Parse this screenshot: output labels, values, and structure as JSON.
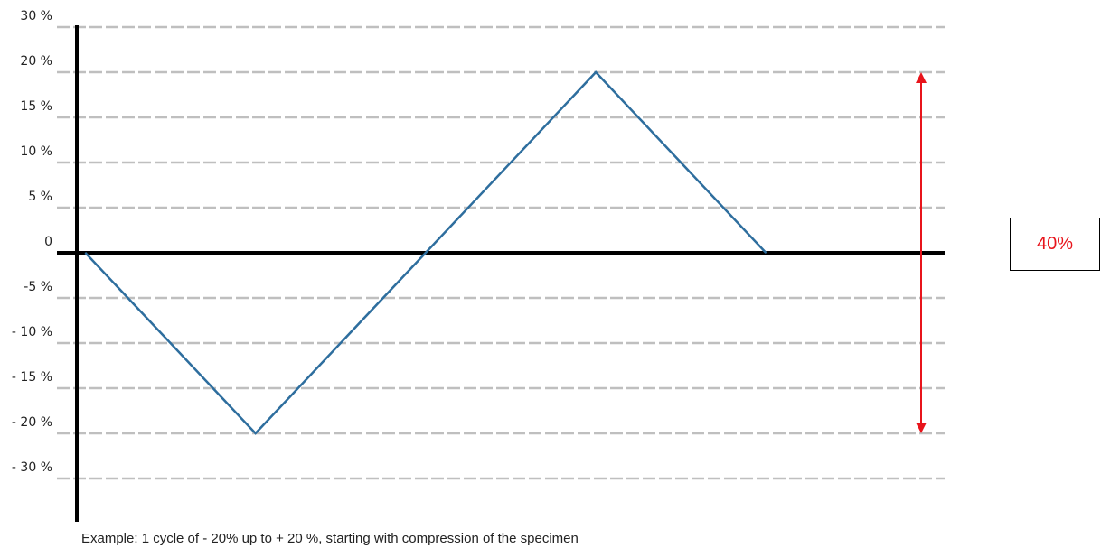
{
  "chart_data": {
    "type": "line",
    "y_tick_labels": [
      "30 %",
      "20 %",
      "15 %",
      "10 %",
      "5 %",
      "0",
      "-5 %",
      "- 10 %",
      "- 15 %",
      "- 20 %",
      "- 30 %"
    ],
    "gridline_values": [
      25,
      20,
      15,
      10,
      5,
      -5,
      -10,
      -15,
      -20,
      -25
    ],
    "series": [
      {
        "x": [
          0,
          1,
          2,
          3,
          4
        ],
        "y": [
          0,
          -20,
          0,
          20,
          0
        ]
      }
    ],
    "xlim": [
      -0.05,
      5.05
    ],
    "ylim": [
      -30,
      30
    ],
    "grid": true,
    "caption": "Example: 1 cycle of - 20% up to + 20 %, starting with compression of the specimen",
    "annotation": {
      "label": "40%",
      "from": -20,
      "to": 20
    }
  },
  "colors": {
    "line": "#2e6e9e",
    "axis": "#000000",
    "grid": "#bfbfbf",
    "annotation": "#e8141b"
  }
}
